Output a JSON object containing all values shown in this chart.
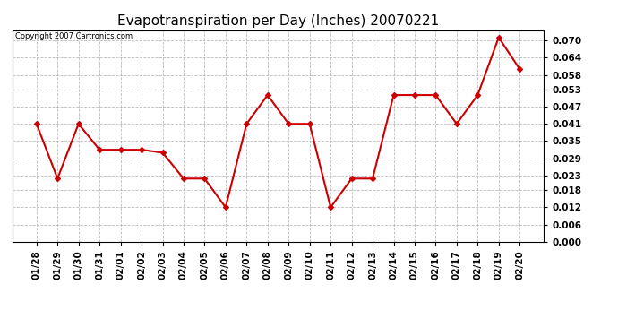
{
  "title": "Evapotranspiration per Day (Inches) 20070221",
  "copyright_text": "Copyright 2007 Cartronics.com",
  "dates": [
    "01/28",
    "01/29",
    "01/30",
    "01/31",
    "02/01",
    "02/02",
    "02/03",
    "02/04",
    "02/05",
    "02/06",
    "02/07",
    "02/08",
    "02/09",
    "02/10",
    "02/11",
    "02/12",
    "02/13",
    "02/14",
    "02/15",
    "02/16",
    "02/17",
    "02/18",
    "02/19",
    "02/20"
  ],
  "values": [
    0.041,
    0.022,
    0.041,
    0.032,
    0.032,
    0.032,
    0.031,
    0.022,
    0.022,
    0.012,
    0.041,
    0.051,
    0.041,
    0.041,
    0.012,
    0.022,
    0.022,
    0.051,
    0.051,
    0.051,
    0.041,
    0.051,
    0.071,
    0.06
  ],
  "line_color": "#cc0000",
  "marker": "D",
  "marker_size": 3,
  "line_width": 1.5,
  "ylim": [
    0.0,
    0.0735
  ],
  "yticks": [
    0.0,
    0.006,
    0.012,
    0.018,
    0.023,
    0.029,
    0.035,
    0.041,
    0.047,
    0.053,
    0.058,
    0.064,
    0.07
  ],
  "bg_color": "#ffffff",
  "grid_color": "#aaaaaa",
  "title_fontsize": 11,
  "copyright_fontsize": 6,
  "tick_fontsize": 7.5
}
